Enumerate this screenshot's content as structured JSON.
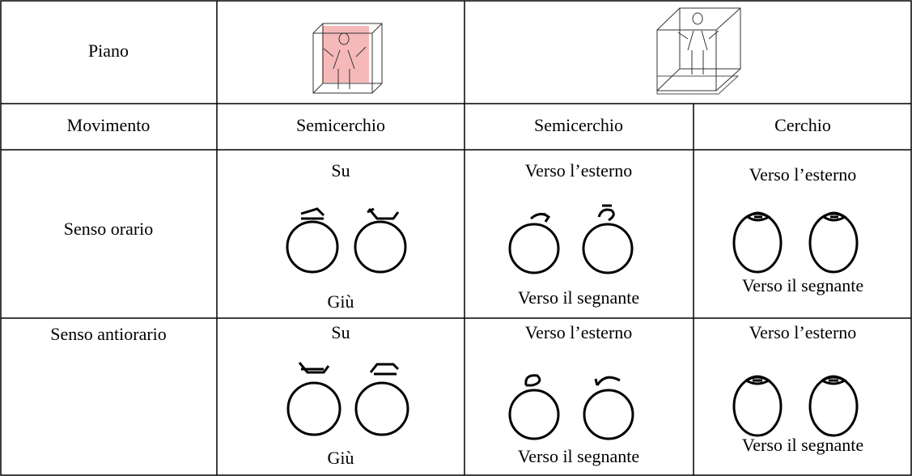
{
  "table": {
    "rows": [
      [
        "Piano"
      ],
      [
        "Movimento",
        "Semicerchio",
        "Semicerchio",
        "Cerchio"
      ],
      [
        "Senso orario",
        {
          "top": "Su",
          "bottom": "Giù"
        },
        {
          "top": "Verso l’esterno",
          "bottom": "Verso il segnante"
        },
        {
          "top": "Verso l’esterno",
          "bottom": "Verso il segnante"
        }
      ],
      [
        "Senso antiorario",
        {
          "top": "Su",
          "bottom": "Giù"
        },
        {
          "top": "Verso l’esterno",
          "bottom": "Verso il segnante"
        },
        {
          "top": "Verso l’esterno",
          "bottom": "Verso il segnante"
        }
      ]
    ]
  }
}
